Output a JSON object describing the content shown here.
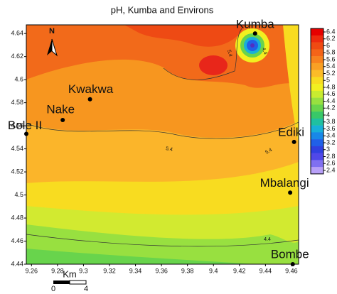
{
  "title": "pH, Kumba and Environs",
  "map": {
    "xlim": [
      9.256,
      9.4655
    ],
    "ylim": [
      4.44,
      4.6475
    ],
    "xticks": [
      9.26,
      9.28,
      9.3,
      9.32,
      9.34,
      9.36,
      9.38,
      9.4,
      9.42,
      9.44,
      9.46
    ],
    "yticks": [
      4.44,
      4.46,
      4.48,
      4.5,
      4.52,
      4.54,
      4.56,
      4.58,
      4.6,
      4.62,
      4.64
    ],
    "places": [
      {
        "name": "Kumba",
        "x": 9.432,
        "y": 4.64
      },
      {
        "name": "Kwakwa",
        "x": 9.305,
        "y": 4.583
      },
      {
        "name": "Nake",
        "x": 9.284,
        "y": 4.565
      },
      {
        "name": "Bole II",
        "x": 9.256,
        "y": 4.553
      },
      {
        "name": "Ediki",
        "x": 9.462,
        "y": 4.546
      },
      {
        "name": "Mbalangi",
        "x": 9.459,
        "y": 4.502
      },
      {
        "name": "Bombe",
        "x": 9.461,
        "y": 4.44
      }
    ],
    "north": "N",
    "contour_labels": [
      5.4,
      4.4,
      5.4,
      5.4,
      4.4
    ]
  },
  "colorbar": {
    "ticks": [
      6.4,
      6.2,
      6,
      5.8,
      5.6,
      5.4,
      5.2,
      5,
      4.8,
      4.6,
      4.4,
      4.2,
      4,
      3.8,
      3.6,
      3.4,
      3.2,
      3,
      2.8,
      2.6,
      2.4
    ],
    "colors": [
      "#e60000",
      "#ee2a0e",
      "#f04a12",
      "#f46418",
      "#f7821e",
      "#f9a024",
      "#fbbc28",
      "#f8dc20",
      "#f2f020",
      "#c8ec30",
      "#98e040",
      "#68d44c",
      "#38c868",
      "#20c0a0",
      "#18b0d8",
      "#1888e8",
      "#2060e8",
      "#3040e0",
      "#5048e8",
      "#8070f0",
      "#b8a0f8"
    ]
  },
  "scale_bar": {
    "unit": "Km",
    "labels": [
      0,
      4
    ]
  }
}
